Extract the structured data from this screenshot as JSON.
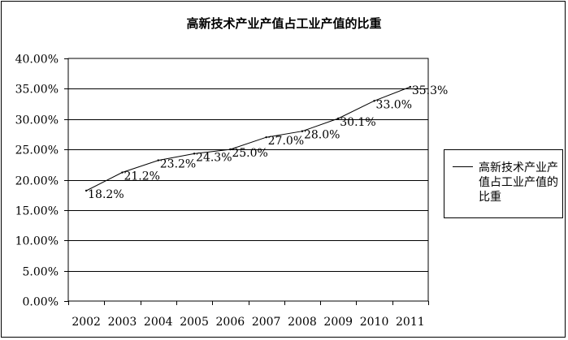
{
  "chart_data": {
    "type": "line",
    "title": "高新技术产业产值占工业产值的比重",
    "xlabel": "",
    "ylabel": "",
    "categories": [
      "2002",
      "2003",
      "2004",
      "2005",
      "2006",
      "2007",
      "2008",
      "2009",
      "2010",
      "2011"
    ],
    "series": [
      {
        "name": "高新技术产业产值占工业产值的比重",
        "values": [
          18.2,
          21.2,
          23.2,
          24.3,
          25.0,
          27.0,
          28.0,
          30.1,
          33.0,
          35.3
        ],
        "labels": [
          "18.2%",
          "21.2%",
          "23.2%",
          "24.3%",
          "25.0%",
          "27.0%",
          "28.0%",
          "30.1%",
          "33.0%",
          "35.3%"
        ],
        "color": "#000000"
      }
    ],
    "ylim": [
      0,
      40
    ],
    "yticks": [
      "0.00%",
      "5.00%",
      "10.00%",
      "15.00%",
      "20.00%",
      "25.00%",
      "30.00%",
      "35.00%",
      "40.00%"
    ],
    "grid": true,
    "legend_position": "right"
  }
}
